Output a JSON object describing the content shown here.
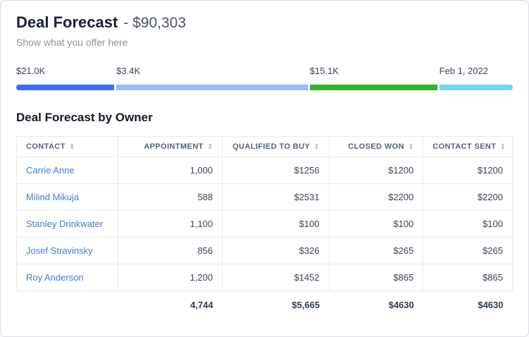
{
  "header": {
    "title": "Deal Forecast",
    "amount": "- $90,303",
    "subtitle": "Show what you offer here"
  },
  "progress": {
    "segments": [
      {
        "label": "$21.0K",
        "color": "#3e6df5",
        "width_pct": 20
      },
      {
        "label": "$3.4K",
        "color": "#9fb9f7",
        "width_pct": 39
      },
      {
        "label": "$15.1K",
        "color": "#2fb32a",
        "width_pct": 26
      },
      {
        "label": "Feb 1, 2022",
        "color": "#6fd4f6",
        "width_pct": 15
      }
    ]
  },
  "table": {
    "title": "Deal Forecast by Owner",
    "columns": [
      "CONTACT",
      "APPOINTMENT",
      "QUALIFIED TO BUY",
      "CLOSED WON",
      "CONTACT SENT"
    ],
    "rows": [
      {
        "contact": "Carrie Anne",
        "appointment": "1,000",
        "qualified": "$1256",
        "closed": "$1200",
        "sent": "$1200"
      },
      {
        "contact": "Milind Mikuja",
        "appointment": "588",
        "qualified": "$2531",
        "closed": "$2200",
        "sent": "$2200"
      },
      {
        "contact": "Stanley Drinkwater",
        "appointment": "1,100",
        "qualified": "$100",
        "closed": "$100",
        "sent": "$100"
      },
      {
        "contact": "Josef Stravinsky",
        "appointment": "856",
        "qualified": "$326",
        "closed": "$265",
        "sent": "$265"
      },
      {
        "contact": "Roy Anderson",
        "appointment": "1,200",
        "qualified": "$1452",
        "closed": "$865",
        "sent": "$865"
      }
    ],
    "totals": {
      "appointment": "4,744",
      "qualified": "$5,665",
      "closed": "$4630",
      "sent": "$4630"
    }
  }
}
